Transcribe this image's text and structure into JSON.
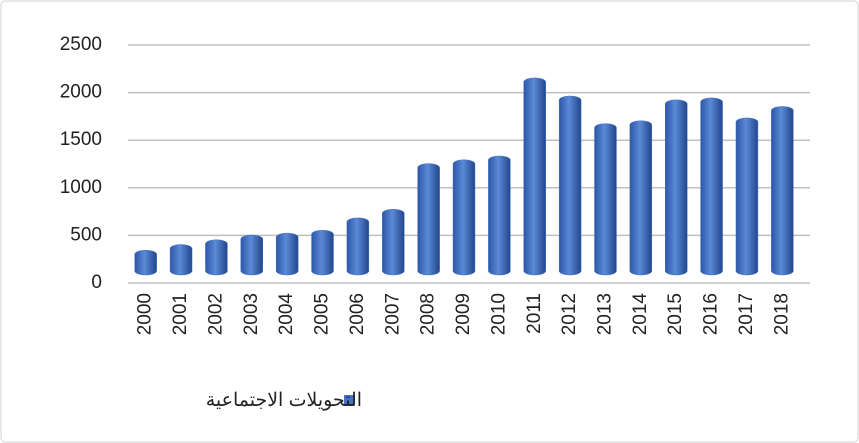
{
  "chart_data": {
    "type": "bar",
    "categories": [
      "2000",
      "2001",
      "2002",
      "2003",
      "2004",
      "2005",
      "2006",
      "2007",
      "2008",
      "2009",
      "2010",
      "2011",
      "2012",
      "2013",
      "2014",
      "2015",
      "2016",
      "2017",
      "2018"
    ],
    "series": [
      {
        "name": "التحويلات الاجتماعية",
        "color": "#4472c4",
        "values": [
          260,
          320,
          370,
          420,
          440,
          470,
          600,
          690,
          1170,
          1210,
          1250,
          2070,
          1880,
          1590,
          1620,
          1840,
          1860,
          1650,
          1770
        ]
      }
    ],
    "ylim": [
      0,
      2500
    ],
    "yticks": [
      0,
      500,
      1000,
      1500,
      2000,
      2500
    ],
    "grid": true
  }
}
